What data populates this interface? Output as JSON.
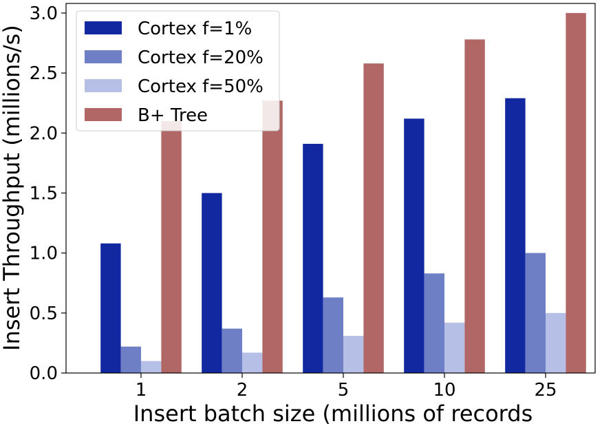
{
  "chart_data": {
    "type": "bar",
    "categories": [
      "1",
      "2",
      "5",
      "10",
      "25"
    ],
    "series": [
      {
        "name": "Cortex f=1%",
        "color": "#1128a0",
        "values": [
          1.08,
          1.5,
          1.91,
          2.12,
          2.29
        ]
      },
      {
        "name": "Cortex f=20%",
        "color": "#6f7fc6",
        "values": [
          0.22,
          0.37,
          0.63,
          0.83,
          1.0
        ]
      },
      {
        "name": "Cortex f=50%",
        "color": "#b6bfe5",
        "values": [
          0.1,
          0.17,
          0.31,
          0.42,
          0.5
        ]
      },
      {
        "name": "B+ Tree",
        "color": "#b16766",
        "values": [
          2.1,
          2.27,
          2.58,
          2.78,
          3.0
        ]
      }
    ],
    "title": "",
    "xlabel": "Insert batch size (millions of records",
    "ylabel": "Insert Throughput (millions/s)",
    "ylim": [
      0,
      3.08
    ],
    "yticks": [
      "0.0",
      "0.5",
      "1.0",
      "1.5",
      "2.0",
      "2.5",
      "3.0"
    ],
    "grid": false,
    "legend_position": "top-left"
  }
}
